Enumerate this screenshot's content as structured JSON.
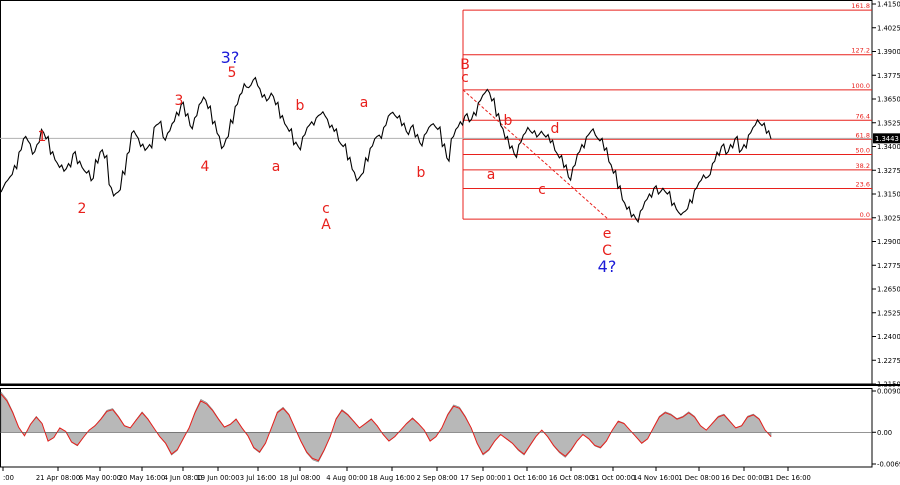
{
  "chart_data": [
    {
      "type": "line",
      "name": "price-chart",
      "price_axis": {
        "ticks": [
          "1.4150",
          "1.4025",
          "1.3900",
          "1.3775",
          "1.3650",
          "1.3525",
          "1.3400",
          "1.3275",
          "1.3150",
          "1.3025",
          "1.2900",
          "1.2775",
          "1.2650",
          "1.2525",
          "1.2400",
          "1.2275",
          "1.2150"
        ],
        "ylim": [
          1.215,
          1.415
        ],
        "current_price": 1.3443,
        "current_price_label": "1.3443"
      },
      "x_ticks": [
        ":00",
        "21 Apr 08:00",
        "6 May 00:00",
        "20 May 16:00",
        "4 Jun 08:00",
        "19 Jun 00:00",
        "3 Jul 16:00",
        "18 Jul 08:00",
        "4 Aug 00:00",
        "18 Aug 16:00",
        "2 Sep 08:00",
        "17 Sep 00:00",
        "1 Oct 16:00",
        "16 Oct 08:00",
        "31 Oct 00:00",
        "14 Nov 16:00",
        "1 Dec 08:00",
        "16 Dec 00:00",
        "31 Dec 16:00"
      ],
      "fibonacci_levels": [
        {
          "label": "0.0",
          "price": 1.3018
        },
        {
          "label": "23.6",
          "price": 1.3179
        },
        {
          "label": "38.2",
          "price": 1.3277
        },
        {
          "label": "50.0",
          "price": 1.3358
        },
        {
          "label": "61.8",
          "price": 1.3438
        },
        {
          "label": "76.4",
          "price": 1.3538
        },
        {
          "label": "100.0",
          "price": 1.3698
        },
        {
          "label": "127.2",
          "price": 1.3883
        },
        {
          "label": "161.8",
          "price": 1.4118
        }
      ],
      "series": [
        {
          "values": [
            1.316,
            1.321,
            1.324,
            1.33,
            1.337,
            1.344,
            1.343,
            1.336,
            1.341,
            1.349,
            1.344,
            1.336,
            1.333,
            1.329,
            1.327,
            1.331,
            1.336,
            1.331,
            1.329,
            1.326,
            1.322,
            1.333,
            1.337,
            1.334,
            1.32,
            1.314,
            1.316,
            1.327,
            1.336,
            1.347,
            1.346,
            1.34,
            1.338,
            1.341,
            1.35,
            1.352,
            1.345,
            1.347,
            1.352,
            1.358,
            1.362,
            1.356,
            1.351,
            1.355,
            1.362,
            1.366,
            1.36,
            1.352,
            1.347,
            1.339,
            1.344,
            1.354,
            1.361,
            1.367,
            1.373,
            1.371,
            1.375,
            1.372,
            1.366,
            1.364,
            1.368,
            1.362,
            1.355,
            1.352,
            1.348,
            1.341,
            1.34,
            1.345,
            1.35,
            1.353,
            1.355,
            1.357,
            1.356,
            1.35,
            1.348,
            1.343,
            1.34,
            1.333,
            1.328,
            1.322,
            1.325,
            1.334,
            1.339,
            1.344,
            1.346,
            1.35,
            1.356,
            1.358,
            1.355,
            1.351,
            1.348,
            1.35,
            1.345,
            1.342,
            1.346,
            1.35,
            1.352,
            1.349,
            1.34,
            1.334,
            1.344,
            1.349,
            1.353,
            1.356,
            1.353,
            1.358,
            1.363,
            1.367,
            1.37,
            1.364,
            1.356,
            1.351,
            1.344,
            1.339,
            1.336,
            1.341,
            1.346,
            1.35,
            1.347,
            1.345,
            1.348,
            1.345,
            1.342,
            1.338,
            1.334,
            1.329,
            1.324,
            1.329,
            1.336,
            1.341,
            1.345,
            1.348,
            1.346,
            1.343,
            1.338,
            1.332,
            1.326,
            1.318,
            1.312,
            1.307,
            1.303,
            1.302,
            1.306,
            1.311,
            1.315,
            1.318,
            1.315,
            1.318,
            1.315,
            1.309,
            1.307,
            1.304,
            1.306,
            1.312,
            1.317,
            1.321,
            1.325,
            1.324,
            1.331,
            1.337,
            1.34,
            1.336,
            1.341,
            1.344,
            1.337,
            1.341,
            1.346,
            1.35,
            1.354,
            1.351,
            1.347,
            1.344
          ]
        }
      ],
      "wave_labels": [
        {
          "text": "1",
          "color": "#e8201c"
        },
        {
          "text": "2",
          "color": "#e8201c"
        },
        {
          "text": "3",
          "color": "#e8201c"
        },
        {
          "text": "4",
          "color": "#e8201c"
        },
        {
          "text": "3?",
          "color": "#1b1bd8"
        },
        {
          "text": "5",
          "color": "#e8201c"
        },
        {
          "text": "a",
          "color": "#e8201c"
        },
        {
          "text": "b",
          "color": "#e8201c"
        },
        {
          "text": "c",
          "color": "#e8201c"
        },
        {
          "text": "A",
          "color": "#e8201c"
        },
        {
          "text": "a",
          "color": "#e8201c"
        },
        {
          "text": "b",
          "color": "#e8201c"
        },
        {
          "text": "B",
          "color": "#e8201c"
        },
        {
          "text": "c",
          "color": "#e8201c"
        },
        {
          "text": "a",
          "color": "#e8201c"
        },
        {
          "text": "b",
          "color": "#e8201c"
        },
        {
          "text": "c",
          "color": "#e8201c"
        },
        {
          "text": "d",
          "color": "#e8201c"
        },
        {
          "text": "e",
          "color": "#e8201c"
        },
        {
          "text": "C",
          "color": "#e8201c"
        },
        {
          "text": "4?",
          "color": "#1b1bd8"
        }
      ],
      "colors": {
        "price_line": "#000000",
        "fib_lines": "#e8201c",
        "wave_red": "#e8201c",
        "wave_blue": "#1b1bd8",
        "ref_line": "#b0b0b0"
      }
    },
    {
      "type": "area",
      "name": "oscillator",
      "y_ticks": [
        "0.00901",
        "0.00",
        "-0.00692"
      ],
      "ylim": [
        -0.00692,
        0.00901
      ],
      "series": [
        {
          "values": [
            0.0088,
            0.0072,
            0.0045,
            0.0012,
            -0.0008,
            0.0018,
            0.0035,
            0.002,
            -0.002,
            -0.0012,
            0.001,
            0.0002,
            -0.0022,
            -0.003,
            -0.0012,
            0.0005,
            0.0015,
            0.003,
            0.0048,
            0.0052,
            0.0035,
            0.0015,
            0.001,
            0.0028,
            0.0045,
            0.003,
            0.001,
            -0.001,
            -0.0025,
            -0.005,
            -0.004,
            -0.0015,
            0.001,
            0.0045,
            0.0072,
            0.0065,
            0.005,
            0.003,
            0.0012,
            0.0018,
            0.003,
            0.001,
            -0.0008,
            -0.0035,
            -0.0045,
            -0.0025,
            0.001,
            0.0045,
            0.0055,
            0.004,
            0.001,
            -0.002,
            -0.0045,
            -0.006,
            -0.0065,
            -0.004,
            -0.001,
            0.003,
            0.005,
            0.004,
            0.0025,
            0.001,
            0.002,
            0.003,
            0.0015,
            -0.0005,
            -0.002,
            -0.001,
            0.0005,
            0.002,
            0.0032,
            0.002,
            0.0005,
            -0.002,
            -0.001,
            0.001,
            0.004,
            0.006,
            0.0055,
            0.0035,
            0.001,
            -0.0025,
            -0.005,
            -0.004,
            -0.002,
            -0.0005,
            -0.0015,
            -0.0025,
            -0.004,
            -0.005,
            -0.003,
            -0.001,
            0.0005,
            -0.001,
            -0.003,
            -0.0045,
            -0.0055,
            -0.004,
            -0.002,
            -0.0005,
            -0.0015,
            -0.003,
            -0.0035,
            -0.002,
            0.0005,
            0.0025,
            0.002,
            0.0005,
            -0.001,
            -0.0025,
            -0.0015,
            0.001,
            0.0035,
            0.0045,
            0.004,
            0.003,
            0.0035,
            0.0045,
            0.0035,
            0.0015,
            0.0005,
            0.002,
            0.0035,
            0.004,
            0.0025,
            0.001,
            0.0015,
            0.0035,
            0.004,
            0.003,
            0.0005,
            -0.001
          ]
        }
      ],
      "colors": {
        "fill": "#b8b8b8",
        "line": "#e8201c",
        "zero": "#555555"
      }
    }
  ]
}
